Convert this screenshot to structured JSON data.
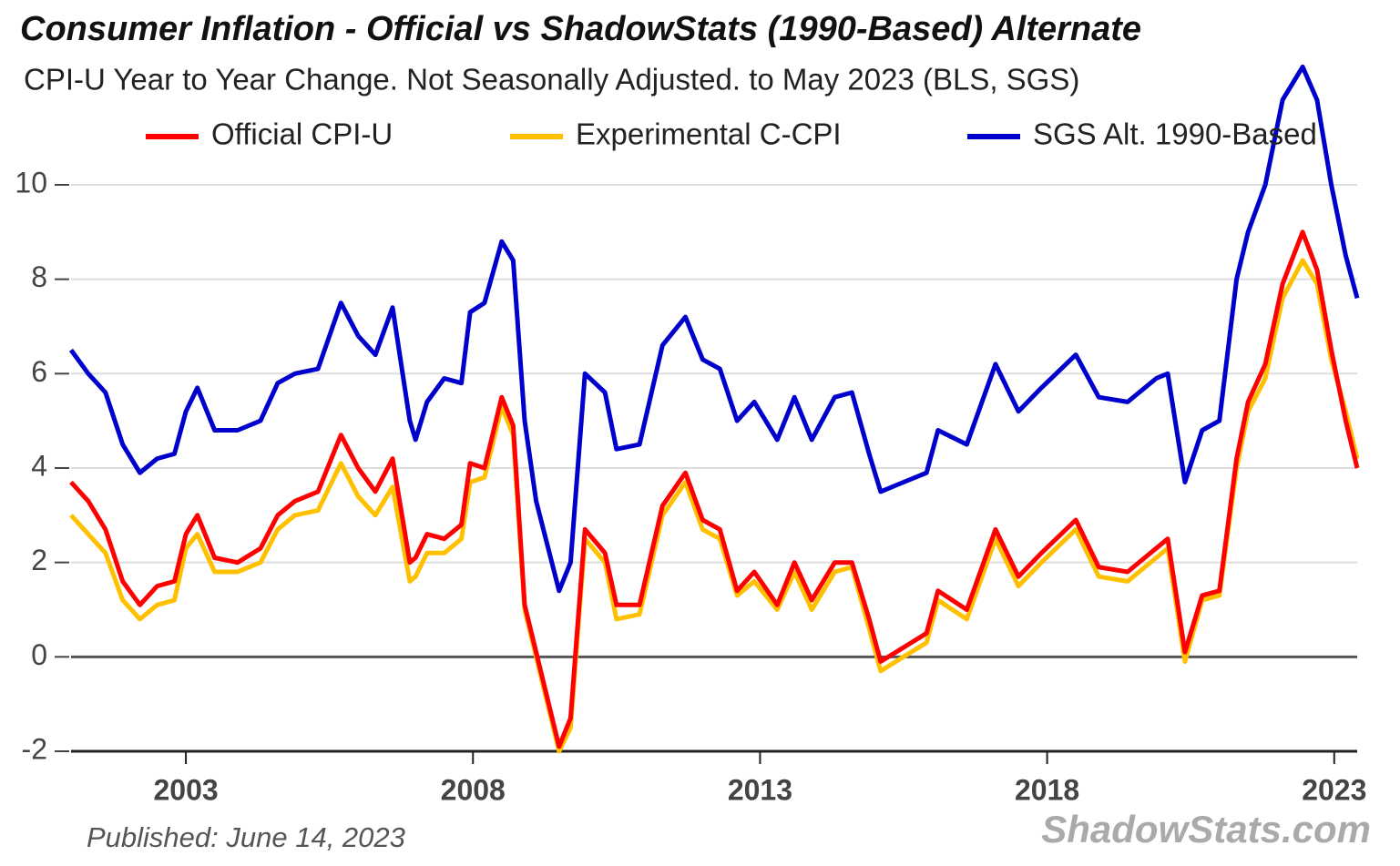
{
  "chart_data": {
    "type": "line",
    "title": "Consumer Inflation - Official vs ShadowStats (1990-Based) Alternate",
    "subtitle": "CPI-U Year to Year Change. Not Seasonally Adjusted. to May 2023  (BLS, SGS)",
    "published": "Published: June 14, 2023",
    "source": "ShadowStats.com",
    "x": [
      2001.0,
      2001.3,
      2001.6,
      2001.9,
      2002.2,
      2002.5,
      2002.8,
      2003.0,
      2003.2,
      2003.5,
      2003.9,
      2004.3,
      2004.6,
      2004.9,
      2005.3,
      2005.7,
      2006.0,
      2006.3,
      2006.6,
      2006.9,
      2007.0,
      2007.2,
      2007.5,
      2007.8,
      2007.95,
      2008.2,
      2008.5,
      2008.7,
      2008.9,
      2009.1,
      2009.5,
      2009.7,
      2009.95,
      2010.3,
      2010.5,
      2010.9,
      2011.3,
      2011.7,
      2012.0,
      2012.3,
      2012.6,
      2012.9,
      2013.3,
      2013.6,
      2013.9,
      2014.3,
      2014.6,
      2014.9,
      2015.1,
      2015.5,
      2015.9,
      2016.1,
      2016.6,
      2017.1,
      2017.5,
      2017.9,
      2018.5,
      2018.9,
      2019.4,
      2019.9,
      2020.1,
      2020.4,
      2020.7,
      2021.0,
      2021.3,
      2021.5,
      2021.8,
      2022.1,
      2022.45,
      2022.7,
      2022.95,
      2023.2,
      2023.4
    ],
    "series": [
      {
        "name": "Experimental C-CPI",
        "color": "#ffc000",
        "values": [
          3.0,
          2.6,
          2.2,
          1.2,
          0.8,
          1.1,
          1.2,
          2.3,
          2.6,
          1.8,
          1.8,
          2.0,
          2.7,
          3.0,
          3.1,
          4.1,
          3.4,
          3.0,
          3.6,
          1.6,
          1.7,
          2.2,
          2.2,
          2.5,
          3.7,
          3.8,
          5.3,
          4.7,
          1.0,
          0.0,
          -2.0,
          -1.5,
          2.5,
          2.0,
          0.8,
          0.9,
          3.0,
          3.7,
          2.7,
          2.5,
          1.3,
          1.6,
          1.0,
          1.8,
          1.0,
          1.8,
          1.9,
          0.6,
          -0.3,
          0.0,
          0.3,
          1.2,
          0.8,
          2.5,
          1.5,
          2.0,
          2.7,
          1.7,
          1.6,
          2.1,
          2.3,
          -0.1,
          1.2,
          1.3,
          4.0,
          5.2,
          5.9,
          7.6,
          8.4,
          7.9,
          6.3,
          5.2,
          4.2
        ]
      },
      {
        "name": "SGS  Alt. 1990-Based",
        "color": "#0000cc",
        "values": [
          6.5,
          6.0,
          5.6,
          4.5,
          3.9,
          4.2,
          4.3,
          5.2,
          5.7,
          4.8,
          4.8,
          5.0,
          5.8,
          6.0,
          6.1,
          7.5,
          6.8,
          6.4,
          7.4,
          5.0,
          4.6,
          5.4,
          5.9,
          5.8,
          7.3,
          7.5,
          8.8,
          8.4,
          5.0,
          3.3,
          1.4,
          2.0,
          6.0,
          5.6,
          4.4,
          4.5,
          6.6,
          7.2,
          6.3,
          6.1,
          5.0,
          5.4,
          4.6,
          5.5,
          4.6,
          5.5,
          5.6,
          4.3,
          3.5,
          3.7,
          3.9,
          4.8,
          4.5,
          6.2,
          5.2,
          5.7,
          6.4,
          5.5,
          5.4,
          5.9,
          6.0,
          3.7,
          4.8,
          5.0,
          8.0,
          9.0,
          10.0,
          11.8,
          12.5,
          11.8,
          10.0,
          8.5,
          7.6
        ]
      },
      {
        "name": "Official CPI-U",
        "color": "#ff0000",
        "values": [
          3.7,
          3.3,
          2.7,
          1.6,
          1.1,
          1.5,
          1.6,
          2.6,
          3.0,
          2.1,
          2.0,
          2.3,
          3.0,
          3.3,
          3.5,
          4.7,
          4.0,
          3.5,
          4.2,
          2.0,
          2.1,
          2.6,
          2.5,
          2.8,
          4.1,
          4.0,
          5.5,
          4.9,
          1.1,
          0.1,
          -1.9,
          -1.3,
          2.7,
          2.2,
          1.1,
          1.1,
          3.2,
          3.9,
          2.9,
          2.7,
          1.4,
          1.8,
          1.1,
          2.0,
          1.2,
          2.0,
          2.0,
          0.8,
          -0.1,
          0.2,
          0.5,
          1.4,
          1.0,
          2.7,
          1.7,
          2.2,
          2.9,
          1.9,
          1.8,
          2.3,
          2.5,
          0.1,
          1.3,
          1.4,
          4.2,
          5.4,
          6.2,
          7.9,
          9.0,
          8.2,
          6.5,
          5.0,
          4.0
        ]
      }
    ],
    "legend_order": [
      "Official CPI-U",
      "Experimental C-CPI",
      "SGS  Alt. 1990-Based"
    ],
    "xlim": [
      2001.0,
      2023.4
    ],
    "xticks": [
      2003,
      2008,
      2013,
      2018,
      2023
    ],
    "ylim": [
      -2,
      12.7
    ],
    "yticks": [
      -2,
      0,
      2,
      4,
      6,
      8,
      10
    ],
    "grid": true
  }
}
